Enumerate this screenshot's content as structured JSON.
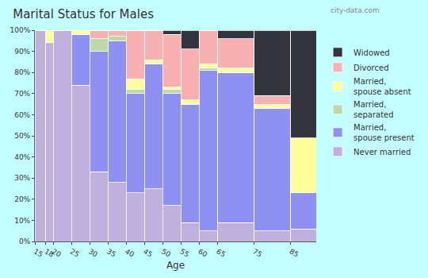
{
  "chart_data": {
    "type": "bar",
    "title": "Marital Status for Males",
    "x_label": "Age",
    "stacked": true,
    "grid": false,
    "legend": "right",
    "annotations": [
      "city-data.com"
    ],
    "bins": [
      15,
      18,
      20,
      25,
      30,
      35,
      40,
      45,
      50,
      55,
      60,
      65,
      75,
      85,
      92
    ],
    "xlim": [
      15,
      92
    ],
    "xticks": [
      15,
      18,
      20,
      25,
      30,
      35,
      40,
      45,
      50,
      55,
      60,
      65,
      75,
      85
    ],
    "ylim": [
      0,
      100
    ],
    "yticks": [
      {
        "value": 0,
        "label": "0%"
      },
      {
        "value": 10,
        "label": "10%"
      },
      {
        "value": 20,
        "label": "20%"
      },
      {
        "value": 30,
        "label": "30%"
      },
      {
        "value": 40,
        "label": "40%"
      },
      {
        "value": 50,
        "label": "50%"
      },
      {
        "value": 60,
        "label": "60%"
      },
      {
        "value": 70,
        "label": "70%"
      },
      {
        "value": 80,
        "label": "80%"
      },
      {
        "value": 90,
        "label": "90%"
      },
      {
        "value": 100,
        "label": "100%"
      }
    ],
    "series": [
      {
        "name": "Never married",
        "color": "#bfb0dd",
        "values": [
          100,
          94,
          100,
          74,
          33,
          28,
          23,
          25,
          17,
          9,
          5,
          9,
          5,
          6
        ]
      },
      {
        "name": "Married, spouse present",
        "color": "#8e90f2",
        "values": [
          0,
          0,
          0,
          24,
          57,
          67,
          47,
          59,
          53,
          56,
          76,
          71,
          58,
          17
        ]
      },
      {
        "name": "Married, separated",
        "color": "#bcd9a8",
        "values": [
          0,
          0,
          0,
          0,
          6,
          2,
          2,
          0,
          2,
          0,
          1,
          0,
          0,
          0
        ]
      },
      {
        "name": "Married, spouse absent",
        "color": "#ffff99",
        "values": [
          0,
          6,
          0,
          2,
          0,
          0,
          5,
          2,
          1,
          2,
          2,
          2,
          2,
          26
        ]
      },
      {
        "name": "Divorced",
        "color": "#f8b0b0",
        "values": [
          0,
          0,
          0,
          0,
          4,
          3,
          23,
          14,
          25,
          24,
          16,
          14,
          4,
          0
        ]
      },
      {
        "name": "Widowed",
        "color": "#34343e",
        "values": [
          0,
          0,
          0,
          0,
          0,
          0,
          0,
          0,
          2,
          9,
          0,
          4,
          31,
          51
        ]
      }
    ]
  }
}
